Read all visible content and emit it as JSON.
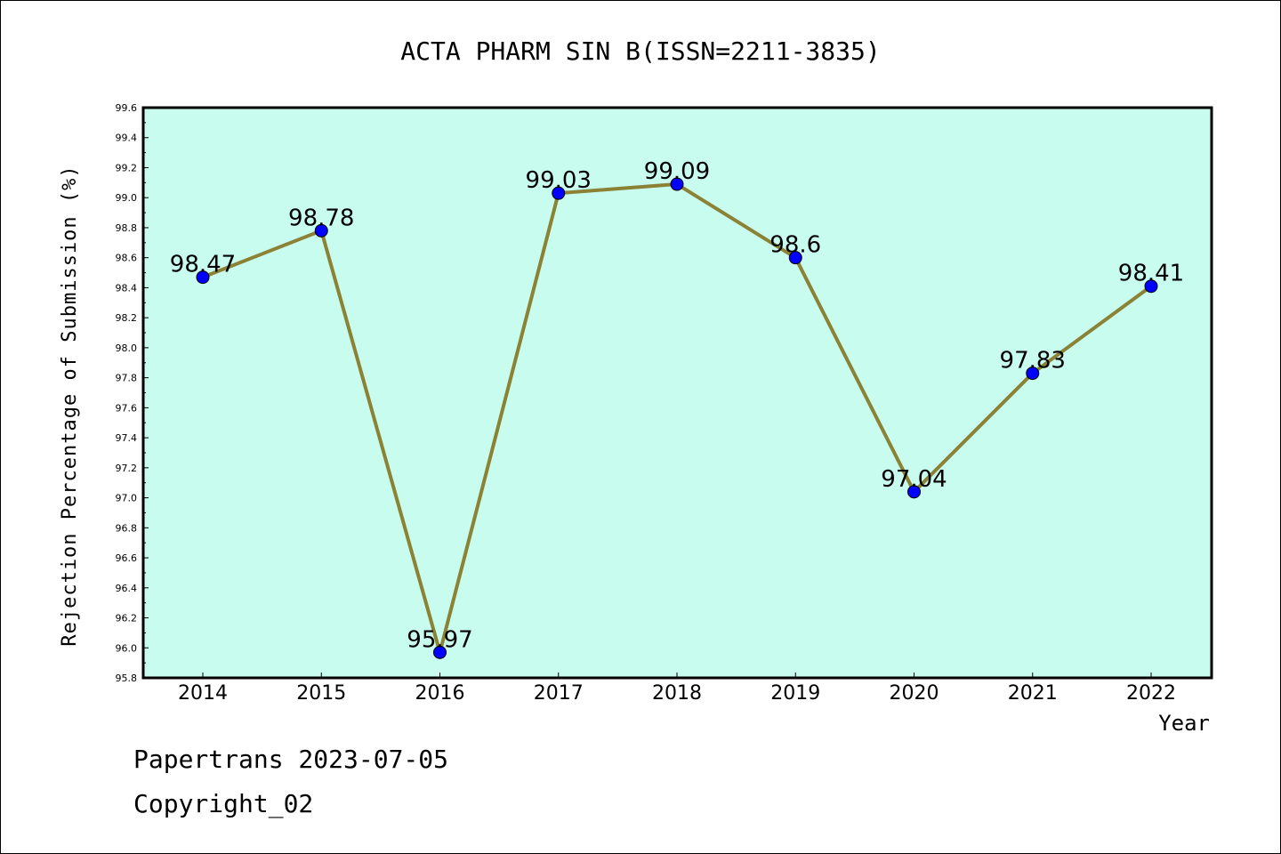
{
  "chart_data": {
    "type": "line",
    "title": "ACTA PHARM SIN B(ISSN=2211-3835)",
    "xlabel": "Year",
    "ylabel": "Rejection Percentage of Submission (%)",
    "categories": [
      "2014",
      "2015",
      "2016",
      "2017",
      "2018",
      "2019",
      "2020",
      "2021",
      "2022"
    ],
    "values": [
      98.47,
      98.78,
      95.97,
      99.03,
      99.09,
      98.6,
      97.04,
      97.83,
      98.41
    ],
    "data_labels": [
      "98.47",
      "98.78",
      "95.97",
      "99.03",
      "99.09",
      "98.6",
      "97.04",
      "97.83",
      "98.41"
    ],
    "ylim": [
      95.8,
      99.6
    ],
    "yticks": [
      "95.8",
      "96.0",
      "96.2",
      "96.4",
      "96.6",
      "96.8",
      "97.0",
      "97.2",
      "97.4",
      "97.6",
      "97.8",
      "98.0",
      "98.2",
      "98.4",
      "98.6",
      "98.8",
      "99.0",
      "99.2",
      "99.4",
      "99.6"
    ],
    "grid": false,
    "colors": {
      "plot_background": "#c8fcee",
      "line": "#8b8236",
      "marker": "#0000ff"
    }
  },
  "footer": {
    "line1": "Papertrans 2023-07-05",
    "line2": "Copyright_02"
  }
}
